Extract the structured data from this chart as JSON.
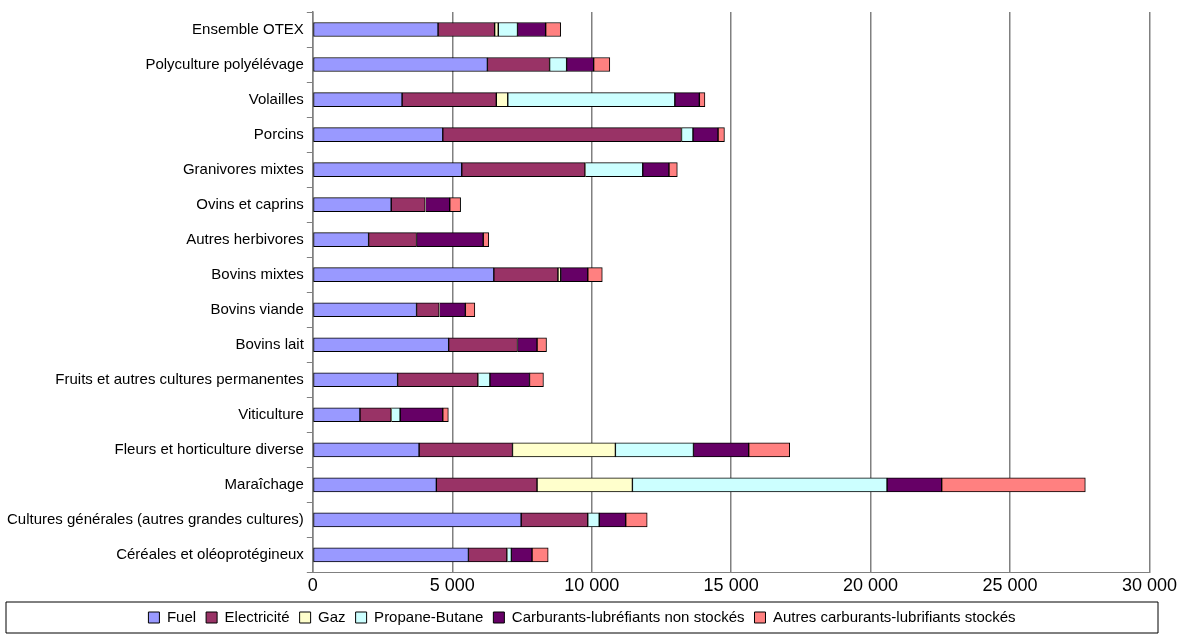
{
  "chart_data": {
    "type": "bar",
    "orientation": "horizontal",
    "stacked": true,
    "categories": [
      "Ensemble OTEX",
      "Polyculture polyélévage",
      "Volailles",
      "Porcins",
      "Granivores mixtes",
      "Ovins et caprins",
      "Autres herbivores",
      "Bovins mixtes",
      "Bovins viande",
      "Bovins lait",
      "Fruits et autres cultures permanentes",
      "Viticulture",
      "Fleurs et horticulture diverse",
      "Maraîchage",
      "Cultures générales (autres grandes cultures)",
      "Céréales et oléoprotégineux"
    ],
    "series": [
      {
        "name": "Fuel",
        "color": "#9999ff",
        "values": [
          4490,
          6260,
          3200,
          4660,
          5340,
          2810,
          2000,
          6490,
          3720,
          4870,
          3040,
          1690,
          3810,
          4430,
          7470,
          5580
        ]
      },
      {
        "name": "Electricité",
        "color": "#993366",
        "values": [
          2030,
          2230,
          3380,
          8560,
          4420,
          1220,
          1720,
          2300,
          810,
          2470,
          2880,
          1120,
          3350,
          3610,
          2390,
          1380
        ]
      },
      {
        "name": "Gaz",
        "color": "#ffffcc",
        "values": [
          130,
          0,
          410,
          0,
          0,
          0,
          0,
          100,
          0,
          0,
          0,
          0,
          3690,
          3420,
          0,
          0
        ]
      },
      {
        "name": "Propane-Butane",
        "color": "#ccffff",
        "values": [
          690,
          610,
          5990,
          410,
          2070,
          0,
          0,
          0,
          0,
          0,
          430,
          320,
          2800,
          9130,
          410,
          160
        ]
      },
      {
        "name": "Carburants-lubréfiants non stockés",
        "color": "#660066",
        "values": [
          1010,
          970,
          880,
          900,
          940,
          880,
          2390,
          970,
          940,
          700,
          1420,
          1530,
          1980,
          1960,
          950,
          740
        ]
      },
      {
        "name": "Autres carburants-lubrifiants stockés",
        "color": "#ff8080",
        "values": [
          540,
          580,
          200,
          230,
          300,
          390,
          200,
          520,
          340,
          340,
          500,
          200,
          1470,
          5150,
          770,
          580
        ]
      }
    ],
    "xlim": [
      0,
      30000
    ],
    "xticks": [
      0,
      {
        "value": 5000,
        "label": "5 000"
      },
      {
        "value": 10000,
        "label": "10 000"
      },
      {
        "value": 15000,
        "label": "15 000"
      },
      {
        "value": 20000,
        "label": "20 000"
      },
      {
        "value": 25000,
        "label": "25 000"
      },
      {
        "value": 30000,
        "label": "30 000"
      }
    ],
    "grid": "x",
    "legend": "bottom"
  }
}
